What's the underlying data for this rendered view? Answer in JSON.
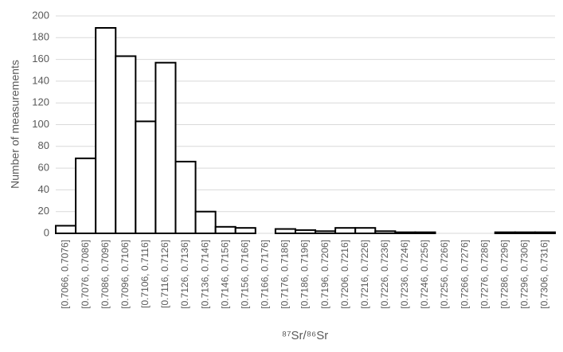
{
  "chart_data": {
    "type": "bar",
    "x_label": "⁸⁷Sr/⁸⁶Sr",
    "y_label": "Number of measurements",
    "categories": [
      "[0.7066, 0.7076]",
      "[0.7076, 0.7086]",
      "[0.7086, 0.7096]",
      "[0.7096, 0.7106]",
      "[0.7106, 0.7116]",
      "[0.7116, 0.7126]",
      "[0.7126, 0.7136]",
      "[0.7136, 0.7146]",
      "[0.7146, 0.7156]",
      "[0.7156, 0.7166]",
      "[0.7166, 0.7176]",
      "[0.7176, 0.7186]",
      "[0.7186, 0.7196]",
      "[0.7196, 0.7206]",
      "[0.7206, 0.7216]",
      "[0.7216, 0.7226]",
      "[0.7226, 0.7236]",
      "[0.7236, 0.7246]",
      "[0.7246, 0.7256]",
      "[0.7256, 0.7266]",
      "[0.7266, 0.7276]",
      "[0.7276, 0.7286]",
      "[0.7286, 0.7296]",
      "[0.7296, 0.7306]",
      "[0.7306, 0.7316]"
    ],
    "values": [
      7,
      69,
      189,
      163,
      103,
      157,
      66,
      20,
      6,
      5,
      0,
      4,
      3,
      2,
      5,
      5,
      2,
      1,
      1,
      0,
      0,
      0,
      1,
      1,
      1
    ],
    "color": "#ffffff",
    "edge_color": "#000000",
    "ylim": [
      0,
      200
    ],
    "yticks": [
      0,
      20,
      40,
      60,
      80,
      100,
      120,
      140,
      160,
      180,
      200
    ],
    "grid": true
  }
}
